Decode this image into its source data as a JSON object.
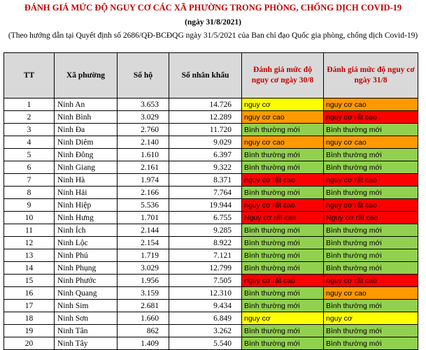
{
  "document": {
    "title": "ĐÁNH GIÁ MỨC ĐỘ NGUY CƠ CÁC XÃ PHƯỜNG TRONG PHÒNG, CHỐNG DỊCH COVID-19",
    "subtitle": "(ngày 31/8/2021)",
    "note": "(Theo hướng dẫn tại Quyết định số 2686/QĐ-BCĐQG ngày 31/5/2021 của Ban chỉ đạo Quốc gia phòng, chống dịch Covid-19)"
  },
  "table": {
    "headers": {
      "tt": "TT",
      "xa_phuong": "Xã phường",
      "so_ho": "Số hộ",
      "so_nhan_khau": "Số nhân khẩu",
      "danh_gia_30_8": "Đánh giá mức độ nguy cơ ngày 30/8",
      "danh_gia_31_8": "Đánh giá mức độ nguy cơ ngày 31/8"
    },
    "risk_colors": {
      "nguy cơ": "#ffff00",
      "nguy cơ cao": "#ff9900",
      "nguy cơ rất cao": "#ff0000",
      "Nguy cơ rất cao": "#ff0000",
      "Bình thường mới": "#92d050"
    },
    "rows": [
      {
        "tt": "1",
        "xa": "Ninh An",
        "ho": "3.653",
        "nk": "14.726",
        "d30": "nguy cơ",
        "d31": "nguy cơ cao"
      },
      {
        "tt": "2",
        "xa": "Ninh Bình",
        "ho": "3.029",
        "nk": "12.289",
        "d30": "nguy cơ cao",
        "d31": "nguy cơ rất cao"
      },
      {
        "tt": "3",
        "xa": "Ninh Đa",
        "ho": "2.760",
        "nk": "11.720",
        "d30": "Bình thường mới",
        "d31": "Bình thường mới"
      },
      {
        "tt": "4",
        "xa": "Ninh Diêm",
        "ho": "2.140",
        "nk": "9.029",
        "d30": "nguy cơ cao",
        "d31": "nguy cơ cao"
      },
      {
        "tt": "5",
        "xa": "Ninh Đông",
        "ho": "1.610",
        "nk": "6.397",
        "d30": "Bình thường mới",
        "d31": "Bình thường mới"
      },
      {
        "tt": "6",
        "xa": "Ninh Giang",
        "ho": "2.161",
        "nk": "9.322",
        "d30": "Bình thường mới",
        "d31": "Bình thường mới"
      },
      {
        "tt": "7",
        "xa": "Ninh Hà",
        "ho": "1.974",
        "nk": "8.371",
        "d30": "nguy cơ rất cao",
        "d31": "nguy cơ rất cao"
      },
      {
        "tt": "8",
        "xa": "Ninh Hải",
        "ho": "2.166",
        "nk": "7.764",
        "d30": "Bình thường mới",
        "d31": "Bình thường mới"
      },
      {
        "tt": "9",
        "xa": "Ninh Hiệp",
        "ho": "5.536",
        "nk": "19.944",
        "d30": "nguy cơ rất cao",
        "d31": "nguy cơ rất cao"
      },
      {
        "tt": "10",
        "xa": "Ninh Hưng",
        "ho": "1.701",
        "nk": "6.755",
        "d30": "Nguy cơ rất cao",
        "d31": "Nguy cơ rất cao"
      },
      {
        "tt": "11",
        "xa": "Ninh Ích",
        "ho": "2.144",
        "nk": "9.285",
        "d30": "Bình thường mới",
        "d31": "Bình thường mới"
      },
      {
        "tt": "12",
        "xa": "Ninh Lộc",
        "ho": "2.154",
        "nk": "8.922",
        "d30": "Bình thường mới",
        "d31": "Bình thường mới"
      },
      {
        "tt": "13",
        "xa": "Ninh Phú",
        "ho": "1.719",
        "nk": "7.121",
        "d30": "Bình thường mới",
        "d31": "Bình thường mới"
      },
      {
        "tt": "14",
        "xa": "Ninh Phụng",
        "ho": "3.029",
        "nk": "12.799",
        "d30": "Bình thường mới",
        "d31": "Bình thường mới"
      },
      {
        "tt": "15",
        "xa": "Ninh Phước",
        "ho": "1.956",
        "nk": "7.505",
        "d30": "nguy cơ rất cao",
        "d31": "nguy cơ rất cao"
      },
      {
        "tt": "16",
        "xa": "Ninh Quang",
        "ho": "3.159",
        "nk": "12.310",
        "d30": "Bình thường mới",
        "d31": "nguy cơ cao"
      },
      {
        "tt": "17",
        "xa": "Ninh Sim",
        "ho": "2.681",
        "nk": "9.434",
        "d30": "Bình thường mới",
        "d31": "Bình thường mới"
      },
      {
        "tt": "18",
        "xa": "Ninh Sơn",
        "ho": "1.660",
        "nk": "6.849",
        "d30": "nguy cơ",
        "d31": "nguy cơ"
      },
      {
        "tt": "19",
        "xa": "Ninh Tân",
        "ho": "862",
        "nk": "3.262",
        "d30": "Bình thường mới",
        "d31": "Bình thường mới"
      },
      {
        "tt": "20",
        "xa": "Ninh Tây",
        "ho": "1.409",
        "nk": "5.540",
        "d30": "Bình thường mới",
        "d31": "Bình thường mới"
      }
    ]
  }
}
